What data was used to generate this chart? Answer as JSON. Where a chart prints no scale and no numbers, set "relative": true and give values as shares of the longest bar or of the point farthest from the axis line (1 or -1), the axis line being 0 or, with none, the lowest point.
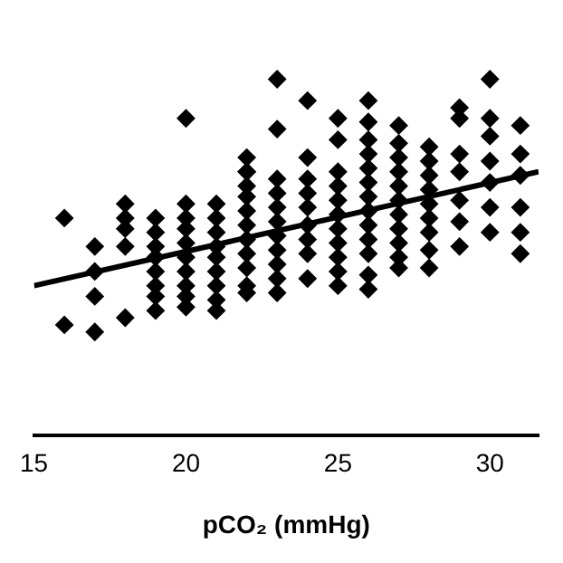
{
  "chart_data": {
    "type": "scatter",
    "xlabel": "pCO₂ (mmHg)",
    "relative": true,
    "grid": false,
    "legend": false,
    "tick_labels": "x",
    "xlim": [
      15,
      31.6
    ],
    "xticks": [
      15,
      20,
      25,
      30
    ],
    "series": [
      {
        "type": "scatter",
        "marker": "diamond",
        "color": "#000000",
        "x": [
          16,
          16,
          17,
          17,
          17,
          17,
          18,
          18,
          18,
          18,
          18,
          19,
          19,
          19,
          19,
          19,
          19,
          19,
          19,
          20,
          20,
          20,
          20,
          20,
          20,
          20,
          20,
          20,
          20,
          21,
          21,
          21,
          21,
          21,
          21,
          21,
          21,
          21,
          22,
          22,
          22,
          22,
          22,
          22,
          22,
          22,
          22,
          22,
          22,
          22,
          23,
          23,
          23,
          23,
          23,
          23,
          23,
          23,
          23,
          23,
          23,
          24,
          24,
          24,
          24,
          24,
          24,
          24,
          24,
          24,
          25,
          25,
          25,
          25,
          25,
          25,
          25,
          25,
          25,
          25,
          25,
          26,
          26,
          26,
          26,
          26,
          26,
          26,
          26,
          26,
          26,
          26,
          26,
          26,
          27,
          27,
          27,
          27,
          27,
          27,
          27,
          27,
          27,
          27,
          27,
          28,
          28,
          28,
          28,
          28,
          28,
          28,
          28,
          28,
          29,
          29,
          29,
          29,
          29,
          29,
          29,
          30,
          30,
          30,
          30,
          30,
          30,
          30,
          31,
          31,
          31,
          31,
          31,
          31
        ],
        "values": [
          0.61,
          0.31,
          0.53,
          0.46,
          0.39,
          0.29,
          0.65,
          0.61,
          0.58,
          0.53,
          0.33,
          0.61,
          0.57,
          0.53,
          0.5,
          0.46,
          0.42,
          0.39,
          0.35,
          0.89,
          0.65,
          0.61,
          0.58,
          0.54,
          0.5,
          0.46,
          0.42,
          0.39,
          0.36,
          0.65,
          0.61,
          0.57,
          0.53,
          0.5,
          0.46,
          0.42,
          0.38,
          0.35,
          0.78,
          0.74,
          0.7,
          0.67,
          0.63,
          0.59,
          0.55,
          0.51,
          0.47,
          0.42,
          0.4,
          0.74,
          1.0,
          0.86,
          0.72,
          0.68,
          0.64,
          0.6,
          0.56,
          0.52,
          0.48,
          0.44,
          0.4,
          0.94,
          0.78,
          0.72,
          0.68,
          0.64,
          0.59,
          0.55,
          0.51,
          0.44,
          0.89,
          0.83,
          0.74,
          0.7,
          0.66,
          0.62,
          0.58,
          0.54,
          0.5,
          0.46,
          0.42,
          0.94,
          0.88,
          0.83,
          0.79,
          0.75,
          0.71,
          0.67,
          0.63,
          0.59,
          0.55,
          0.51,
          0.45,
          0.41,
          0.87,
          0.82,
          0.78,
          0.74,
          0.7,
          0.66,
          0.62,
          0.58,
          0.54,
          0.5,
          0.47,
          0.81,
          0.77,
          0.73,
          0.69,
          0.65,
          0.61,
          0.57,
          0.52,
          0.47,
          0.92,
          0.89,
          0.79,
          0.74,
          0.66,
          0.6,
          0.53,
          1.0,
          0.89,
          0.84,
          0.77,
          0.71,
          0.64,
          0.57,
          0.87,
          0.79,
          0.73,
          0.64,
          0.57,
          0.51
        ]
      },
      {
        "type": "line",
        "marker": "none",
        "color": "#000000",
        "x": [
          15,
          31.6
        ],
        "values": [
          0.42,
          0.74
        ]
      }
    ]
  }
}
